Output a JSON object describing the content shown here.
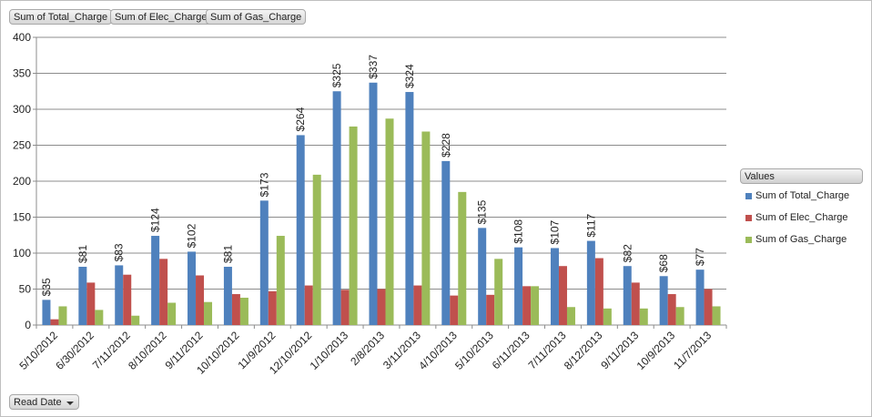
{
  "field_buttons": {
    "total": "Sum of Total_Charge",
    "elec": "Sum of Elec_Charge",
    "gas": "Sum of Gas_Charge",
    "read_date": "Read Date"
  },
  "legend": {
    "title": "Values",
    "items": [
      "Sum of Total_Charge",
      "Sum of Elec_Charge",
      "Sum of Gas_Charge"
    ]
  },
  "colors": {
    "total": "#4f81bd",
    "elec": "#c0504d",
    "gas": "#9bbb59"
  },
  "chart_data": {
    "type": "bar",
    "title": "",
    "xlabel": "",
    "ylabel": "",
    "ylim": [
      0,
      400
    ],
    "yticks": [
      0,
      50,
      100,
      150,
      200,
      250,
      300,
      350,
      400
    ],
    "grid": true,
    "legend_position": "right",
    "categories": [
      "5/10/2012",
      "6/30/2012",
      "7/11/2012",
      "8/10/2012",
      "9/11/2012",
      "10/10/2012",
      "11/9/2012",
      "12/10/2012",
      "1/10/2013",
      "2/8/2013",
      "3/11/2013",
      "4/10/2013",
      "5/10/2013",
      "6/11/2013",
      "7/11/2013",
      "8/12/2013",
      "9/11/2013",
      "10/9/2013",
      "11/7/2013"
    ],
    "series": [
      {
        "name": "Sum of Total_Charge",
        "values": [
          35,
          81,
          83,
          124,
          102,
          81,
          173,
          264,
          325,
          337,
          324,
          228,
          135,
          108,
          107,
          117,
          82,
          68,
          77
        ]
      },
      {
        "name": "Sum of Elec_Charge",
        "values": [
          8,
          59,
          70,
          92,
          69,
          43,
          47,
          55,
          49,
          50,
          55,
          41,
          42,
          54,
          82,
          93,
          59,
          43,
          50
        ]
      },
      {
        "name": "Sum of Gas_Charge",
        "values": [
          26,
          21,
          13,
          31,
          32,
          38,
          124,
          209,
          276,
          287,
          269,
          185,
          92,
          54,
          25,
          23,
          23,
          25,
          26
        ]
      }
    ],
    "data_labels": [
      "$35",
      "$81",
      "$83",
      "$124",
      "$102",
      "$81",
      "$173",
      "$264",
      "$325",
      "$337",
      "$324",
      "$228",
      "$135",
      "$108",
      "$107",
      "$117",
      "$82",
      "$68",
      "$77"
    ]
  }
}
